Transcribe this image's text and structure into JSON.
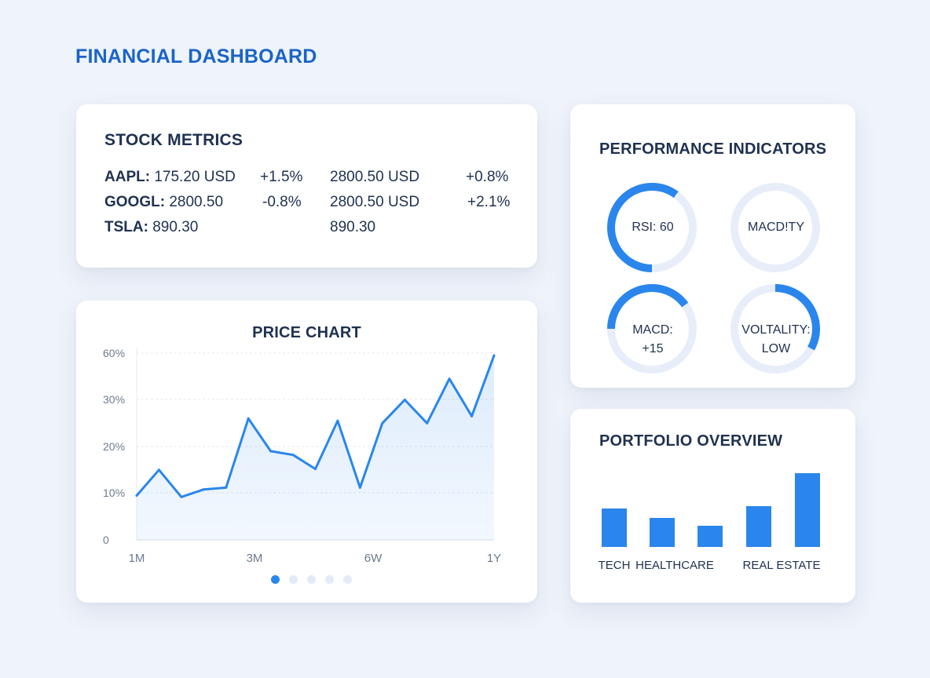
{
  "header": {
    "title": "FINANCIAL DASHBOARD"
  },
  "stock_metrics": {
    "title": "STOCK METRICS",
    "rows": [
      {
        "symbol": "AAPL:",
        "price": "175.20 USD",
        "change": "+1.5%",
        "price2": "2800.50 USD",
        "change2": "+0.8%"
      },
      {
        "symbol": "GOOGL:",
        "price": "2800.50",
        "change": "-0.8%",
        "price2": "2800.50 USD",
        "change2": "+2.1%"
      },
      {
        "symbol": "TSLA:",
        "price": "890.30",
        "change": "",
        "price2": "890.30",
        "change2": ""
      }
    ]
  },
  "performance": {
    "title": "PERFORMANCE INDICATORS",
    "gauges": [
      {
        "lines": [
          "RSI: 60"
        ],
        "value": 60
      },
      {
        "lines": [
          "MACD!TY"
        ],
        "value": 0
      },
      {
        "lines": [
          "MACD:",
          "+15"
        ],
        "value": 40
      },
      {
        "lines": [
          "VOLTALITY:",
          "LOW"
        ],
        "value": 33
      }
    ],
    "colors": {
      "accent": "#2a86ec",
      "track": "#e8eef9"
    }
  },
  "price_chart": {
    "title": "PRICE CHART",
    "pager": {
      "count": 5,
      "active": 0
    }
  },
  "portfolio": {
    "title": "PORTFOLIO OVERVIEW"
  },
  "chart_data": [
    {
      "type": "area",
      "title": "PRICE CHART",
      "ytick_labels": [
        "0",
        "10%",
        "20%",
        "30%",
        "60%"
      ],
      "xtick_labels": [
        "1M",
        "3M",
        "6W",
        "1Y"
      ],
      "y_display": [
        9.5,
        15,
        9.2,
        10.8,
        11.2,
        26,
        19,
        18.2,
        15.2,
        25.5,
        11.2,
        25,
        30,
        25,
        34.5,
        26.5,
        39.5
      ],
      "color": "#2a86ec",
      "grid": true
    },
    {
      "type": "bar",
      "title": "PORTFOLIO OVERVIEW",
      "categories": [
        "TECH",
        "HEALTHCARE",
        "",
        "REAL ESTATE",
        ""
      ],
      "values": [
        49,
        37,
        27,
        52,
        94
      ],
      "color": "#2a86ec"
    }
  ]
}
